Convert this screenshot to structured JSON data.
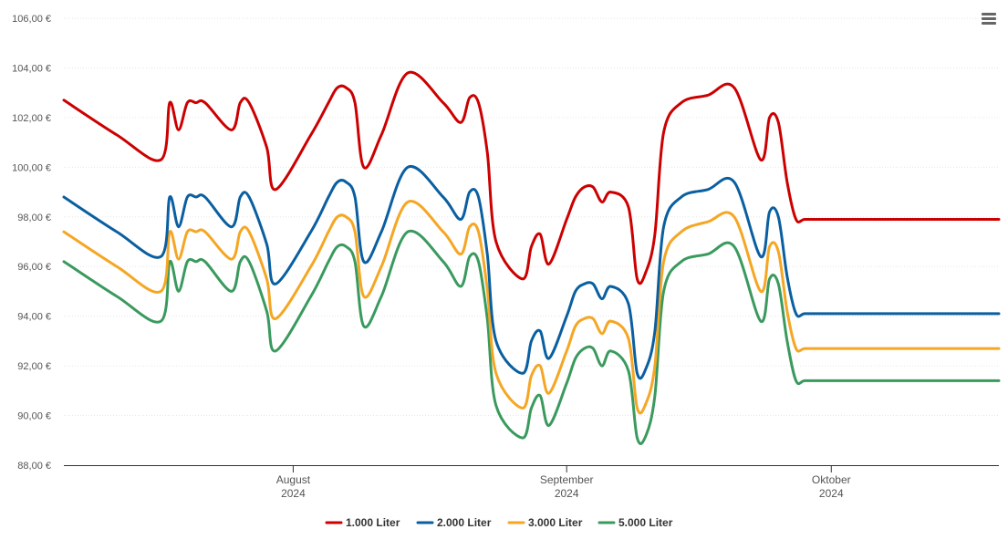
{
  "menu": {
    "icon": "hamburger-menu-icon"
  },
  "chart_data": {
    "type": "line",
    "ylim": [
      88,
      106
    ],
    "yticks": [
      "88,00 €",
      "90,00 €",
      "92,00 €",
      "94,00 €",
      "96,00 €",
      "98,00 €",
      "100,00 €",
      "102,00 €",
      "104,00 €",
      "106,00 €"
    ],
    "ytick_values": [
      88,
      90,
      92,
      94,
      96,
      98,
      100,
      102,
      104,
      106
    ],
    "xlim": [
      "2024-07-06",
      "2024-10-20"
    ],
    "xticks": [
      {
        "date": "2024-08-01",
        "label": "August",
        "year": "2024"
      },
      {
        "date": "2024-09-01",
        "label": "September",
        "year": "2024"
      },
      {
        "date": "2024-10-01",
        "label": "Oktober",
        "year": "2024"
      }
    ],
    "grid": "horizontal",
    "legend_position": "bottom",
    "x": [
      "2024-07-06",
      "2024-07-12",
      "2024-07-17",
      "2024-07-18",
      "2024-07-19",
      "2024-07-20",
      "2024-07-21",
      "2024-07-22",
      "2024-07-25",
      "2024-07-26",
      "2024-07-27",
      "2024-07-29",
      "2024-07-30",
      "2024-08-03",
      "2024-08-05",
      "2024-08-06",
      "2024-08-07",
      "2024-08-08",
      "2024-08-09",
      "2024-08-11",
      "2024-08-14",
      "2024-08-18",
      "2024-08-20",
      "2024-08-21",
      "2024-08-22",
      "2024-08-23",
      "2024-08-24",
      "2024-08-27",
      "2024-08-28",
      "2024-08-29",
      "2024-08-30",
      "2024-09-01",
      "2024-09-02",
      "2024-09-03",
      "2024-09-04",
      "2024-09-05",
      "2024-09-06",
      "2024-09-08",
      "2024-09-09",
      "2024-09-10",
      "2024-09-11",
      "2024-09-12",
      "2024-09-14",
      "2024-09-17",
      "2024-09-20",
      "2024-09-23",
      "2024-09-24",
      "2024-09-25",
      "2024-09-26",
      "2024-09-27",
      "2024-09-28",
      "2024-09-30",
      "2024-10-01",
      "2024-10-02",
      "2024-10-03",
      "2024-10-04",
      "2024-10-05",
      "2024-10-07",
      "2024-10-08",
      "2024-10-09",
      "2024-10-10",
      "2024-10-11",
      "2024-10-13",
      "2024-10-14",
      "2024-10-15",
      "2024-10-20"
    ],
    "series": [
      {
        "name": "1.000 Liter",
        "color": "#cc0000",
        "values": [
          102.7,
          101.3,
          100.3,
          102.6,
          101.5,
          102.6,
          102.6,
          102.6,
          101.5,
          102.6,
          102.6,
          100.8,
          99.1,
          101.3,
          102.6,
          103.2,
          103.2,
          102.6,
          100.0,
          101.3,
          103.8,
          102.6,
          101.8,
          102.8,
          102.6,
          100.6,
          97.0,
          95.5,
          96.8,
          97.3,
          96.1,
          97.9,
          98.8,
          99.2,
          99.2,
          98.6,
          99.0,
          98.4,
          95.5,
          95.8,
          97.3,
          101.4,
          102.6,
          102.9,
          103.2,
          100.3,
          102.0,
          101.8,
          99.4,
          97.9,
          97.9,
          97.9,
          97.9,
          97.9,
          97.9,
          97.9,
          97.9,
          97.9,
          97.9,
          97.9,
          97.9,
          97.9,
          97.9,
          97.9,
          97.9,
          97.9
        ]
      },
      {
        "name": "2.000 Liter",
        "color": "#0a5fa0",
        "values": [
          98.8,
          97.4,
          96.4,
          98.8,
          97.6,
          98.8,
          98.8,
          98.8,
          97.6,
          98.8,
          98.8,
          96.9,
          95.3,
          97.4,
          98.8,
          99.4,
          99.4,
          98.8,
          96.2,
          97.4,
          100.0,
          98.8,
          97.9,
          99.0,
          98.8,
          96.5,
          93.0,
          91.7,
          93.0,
          93.4,
          92.3,
          94.0,
          95.0,
          95.3,
          95.3,
          94.7,
          95.2,
          94.5,
          91.7,
          91.9,
          93.4,
          97.6,
          98.8,
          99.1,
          99.4,
          96.4,
          98.2,
          98.0,
          95.6,
          94.1,
          94.1,
          94.1,
          94.1,
          94.1,
          94.1,
          94.1,
          94.1,
          94.1,
          94.1,
          94.1,
          94.1,
          94.1,
          94.1,
          94.1,
          94.1,
          94.1
        ]
      },
      {
        "name": "3.000 Liter",
        "color": "#f5a623",
        "values": [
          97.4,
          96.0,
          95.0,
          97.4,
          96.3,
          97.4,
          97.4,
          97.4,
          96.3,
          97.4,
          97.4,
          95.5,
          93.9,
          96.0,
          97.4,
          98.0,
          98.0,
          97.4,
          94.8,
          96.0,
          98.6,
          97.4,
          96.5,
          97.6,
          97.4,
          95.1,
          91.7,
          90.3,
          91.6,
          92.0,
          90.9,
          92.6,
          93.6,
          93.9,
          93.9,
          93.3,
          93.8,
          93.1,
          90.3,
          90.5,
          92.0,
          96.2,
          97.4,
          97.8,
          98.0,
          95.0,
          96.8,
          96.6,
          94.2,
          92.7,
          92.7,
          92.7,
          92.7,
          92.7,
          92.7,
          92.7,
          92.7,
          92.7,
          92.7,
          92.7,
          92.7,
          92.7,
          92.7,
          92.7,
          92.7,
          92.7
        ]
      },
      {
        "name": "5.000 Liter",
        "color": "#3a9a5e",
        "values": [
          96.2,
          94.8,
          93.8,
          96.2,
          95.0,
          96.2,
          96.2,
          96.2,
          95.0,
          96.2,
          96.2,
          94.2,
          92.6,
          94.8,
          96.2,
          96.8,
          96.8,
          96.2,
          93.6,
          94.8,
          97.4,
          96.2,
          95.2,
          96.4,
          96.2,
          93.9,
          90.4,
          89.1,
          90.3,
          90.8,
          89.6,
          91.3,
          92.3,
          92.7,
          92.7,
          92.0,
          92.6,
          91.8,
          89.1,
          89.2,
          90.8,
          95.0,
          96.2,
          96.5,
          96.8,
          93.8,
          95.5,
          95.3,
          93.0,
          91.4,
          91.4,
          91.4,
          91.4,
          91.4,
          91.4,
          91.4,
          91.4,
          91.4,
          91.4,
          91.4,
          91.4,
          91.4,
          91.4,
          91.4,
          91.4,
          91.4
        ]
      }
    ]
  }
}
